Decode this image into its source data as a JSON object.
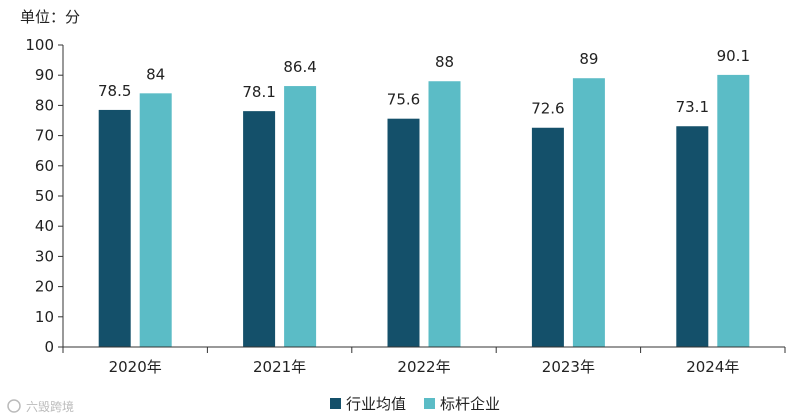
{
  "watermark": "六毁跨境",
  "chart_data": {
    "type": "bar",
    "unit_label": "单位：分",
    "categories": [
      "2020年",
      "2021年",
      "2022年",
      "2023年",
      "2024年"
    ],
    "series": [
      {
        "name": "行业均值",
        "color": "#14506a",
        "values": [
          78.5,
          78.1,
          75.6,
          72.6,
          73.1
        ]
      },
      {
        "name": "标杆企业",
        "color": "#5bbcc6",
        "values": [
          84,
          86.4,
          88,
          89,
          90.1
        ]
      }
    ],
    "value_labels": [
      [
        "78.5",
        "78.1",
        "75.6",
        "72.6",
        "73.1"
      ],
      [
        "84",
        "86.4",
        "88",
        "89",
        "90.1"
      ]
    ],
    "yticks": [
      "0",
      "10",
      "20",
      "30",
      "40",
      "50",
      "60",
      "70",
      "80",
      "90",
      "100"
    ],
    "ylim": [
      0,
      100
    ],
    "grid": false,
    "legend_position": "bottom-center"
  }
}
